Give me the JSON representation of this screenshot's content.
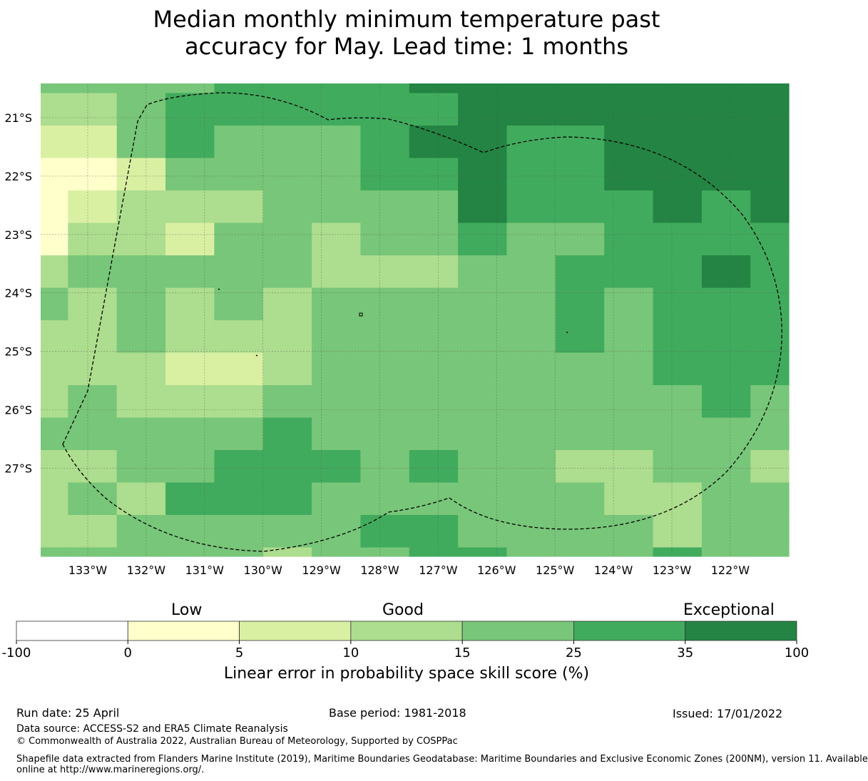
{
  "title": {
    "line1": "Median monthly minimum temperature past",
    "line2": "accuracy for May. Lead time: 1 months"
  },
  "map": {
    "lon_labels": [
      "133°W",
      "132°W",
      "131°W",
      "130°W",
      "129°W",
      "128°W",
      "127°W",
      "126°W",
      "125°W",
      "124°W",
      "123°W",
      "122°W"
    ],
    "lat_labels": [
      "21°S",
      "22°S",
      "23°S",
      "24°S",
      "25°S",
      "26°S",
      "27°S"
    ],
    "grid_classes": [
      [
        4,
        4,
        4,
        4,
        5,
        5,
        5,
        5,
        6,
        6,
        6,
        6,
        6,
        6,
        6,
        6
      ],
      [
        3,
        3,
        4,
        5,
        5,
        5,
        5,
        5,
        5,
        6,
        6,
        6,
        6,
        6,
        6,
        6
      ],
      [
        2,
        2,
        4,
        5,
        4,
        4,
        4,
        5,
        6,
        6,
        5,
        5,
        6,
        6,
        6,
        6
      ],
      [
        1,
        1,
        2,
        4,
        4,
        4,
        4,
        5,
        5,
        6,
        5,
        5,
        6,
        6,
        6,
        6
      ],
      [
        1,
        2,
        3,
        3,
        3,
        4,
        4,
        4,
        4,
        6,
        5,
        5,
        5,
        6,
        5,
        6
      ],
      [
        1,
        3,
        3,
        2,
        4,
        4,
        3,
        4,
        4,
        5,
        4,
        4,
        5,
        5,
        5,
        5
      ],
      [
        3,
        4,
        4,
        4,
        4,
        4,
        3,
        3,
        3,
        4,
        4,
        5,
        5,
        5,
        6,
        5
      ],
      [
        4,
        3,
        4,
        3,
        4,
        3,
        4,
        4,
        4,
        4,
        4,
        5,
        4,
        5,
        5,
        5
      ],
      [
        3,
        3,
        4,
        3,
        3,
        3,
        4,
        4,
        4,
        4,
        4,
        5,
        4,
        5,
        5,
        5
      ],
      [
        3,
        3,
        3,
        2,
        2,
        3,
        4,
        4,
        4,
        4,
        4,
        4,
        4,
        5,
        5,
        5
      ],
      [
        3,
        4,
        3,
        3,
        3,
        4,
        4,
        4,
        4,
        4,
        4,
        4,
        4,
        4,
        5,
        4
      ],
      [
        4,
        4,
        4,
        4,
        4,
        5,
        4,
        4,
        4,
        4,
        4,
        4,
        4,
        4,
        4,
        4
      ],
      [
        3,
        3,
        4,
        4,
        5,
        5,
        5,
        4,
        5,
        4,
        4,
        3,
        3,
        4,
        4,
        3
      ],
      [
        3,
        4,
        3,
        5,
        5,
        5,
        4,
        4,
        4,
        4,
        4,
        4,
        3,
        3,
        4,
        4
      ],
      [
        3,
        3,
        4,
        4,
        4,
        4,
        4,
        5,
        5,
        4,
        4,
        4,
        4,
        3,
        4,
        4
      ],
      [
        4,
        4,
        4,
        4,
        4,
        3,
        4,
        4,
        5,
        5,
        4,
        4,
        4,
        5,
        4,
        4
      ]
    ]
  },
  "colorbar": {
    "categories": [
      "Low",
      "Good",
      "Exceptional"
    ],
    "ticks": [
      "-100",
      "0",
      "5",
      "10",
      "15",
      "25",
      "35",
      "100"
    ],
    "colors": [
      "#ffffff",
      "#ffffcc",
      "#d9f0a3",
      "#addd8e",
      "#78c679",
      "#41ab5d",
      "#238443"
    ],
    "label": "Linear error in probability space skill score (%)"
  },
  "footer": {
    "run_date": "Run date: 25 April",
    "base_period": "Base period: 1981-2018",
    "issued": "Issued: 17/01/2022",
    "data_source": "Data source: ACCESS-S2 and ERA5 Climate Reanalysis",
    "copyright": "© Commonwealth of Australia 2022, Australian Bureau of Meteorology, Supported by COSPPac",
    "shapefile_line1": "Shapefile data extracted from Flanders Marine Institute (2019), Maritime Boundaries Geodatabase: Maritime Boundaries and Exclusive Economic Zones (200NM), version 11. Available",
    "shapefile_line2": "online at http://www.marineregions.org/."
  }
}
